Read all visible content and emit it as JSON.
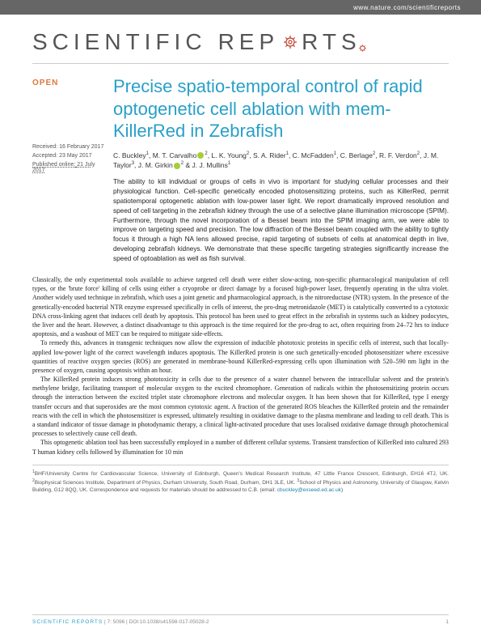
{
  "banner": {
    "url": "www.nature.com/scientificreports"
  },
  "journal": {
    "name_part1": "SCIENTIFIC",
    "name_part2": "REP",
    "name_part3": "RTS"
  },
  "openAccess": "OPEN",
  "meta": {
    "received_label": "Received:",
    "received_date": "16 February 2017",
    "accepted_label": "Accepted:",
    "accepted_date": "23 May 2017",
    "published_label": "Published online:",
    "published_date": "21 July 2017"
  },
  "article": {
    "title": "Precise spatio-temporal control of rapid optogenetic cell ablation with mem-KillerRed in Zebrafish",
    "authors_html": "C. Buckley<sup>1</sup>, M. T. Carvalho<orcid></orcid><sup>2</sup>, L. K. Young<sup>2</sup>, S. A. Rider<sup>1</sup>, C. McFadden<sup>1</sup>, C. Berlage<sup>2</sup>, R. F. Verdon<sup>2</sup>, J. M. Taylor<sup>3</sup>, J. M. Girkin<orcid></orcid><sup>2</sup> & J. J. Mullins<sup>1</sup>",
    "abstract": "The ability to kill individual or groups of cells in vivo is important for studying cellular processes and their physiological function. Cell-specific genetically encoded photosensitizing proteins, such as KillerRed, permit spatiotemporal optogenetic ablation with low-power laser light. We report dramatically improved resolution and speed of cell targeting in the zebrafish kidney through the use of a selective plane illumination microscope (SPIM). Furthermore, through the novel incorporation of a Bessel beam into the SPIM imaging arm, we were able to improve on targeting speed and precision. The low diffraction of the Bessel beam coupled with the ability to tightly focus it through a high NA lens allowed precise, rapid targeting of subsets of cells at anatomical depth in live, developing zebrafish kidneys. We demonstrate that these specific targeting strategies significantly increase the speed of optoablation as well as fish survival."
  },
  "body": {
    "p1": "Classically, the only experimental tools available to achieve targeted cell death were either slow-acting, non-specific pharmacological manipulation of cell types, or the 'brute force' killing of cells using either a cryoprobe or direct damage by a focused high-power laser, frequently operating in the ultra violet. Another widely used technique in zebrafish, which uses a joint genetic and pharmacological approach, is the nitroreductase (NTR) system. In the presence of the genetically-encoded bacterial NTR enzyme expressed specifically in cells of interest, the pro-drug metronidazole (MET) is catalytically converted to a cytotoxic DNA cross-linking agent that induces cell death by apoptosis. This protocol has been used to great effect in the zebrafish in systems such as kidney podocytes, the liver and the heart. However, a distinct disadvantage to this approach is the time required for the pro-drug to act, often requiring from 24–72 hrs to induce apoptosis, and a washout of MET can be required to mitigate side-effects.",
    "p2": "To remedy this, advances in transgenic techniques now allow the expression of inducible phototoxic proteins in specific cells of interest, such that locally-applied low-power light of the correct wavelength induces apoptosis. The KillerRed protein is one such genetically-encoded photosensitizer where excessive quantities of reactive oxygen species (ROS) are generated in membrane-bound KillerRed-expressing cells upon illumination with 520–590 nm light in the presence of oxygen, causing apoptosis within an hour.",
    "p3": "The KillerRed protein induces strong phototoxicity in cells due to the presence of a water channel between the intracellular solvent and the protein's methylene bridge, facilitating transport of molecular oxygen to the excited chromophore. Generation of radicals within the photosensitizing protein occurs through the interaction between the excited triplet state chromophore electrons and molecular oxygen. It has been shown that for KillerRed, type I energy transfer occurs and that superoxides are the most common cytotoxic agent. A fraction of the generated ROS bleaches the KillerRed protein and the remainder reacts with the cell in which the photosensitizer is expressed, ultimately resulting in oxidative damage to the plasma membrane and leading to cell death. This is a standard indicator of tissue damage in photodynamic therapy, a clinical light-activated procedure that uses localised oxidative damage through photochemical processes to selectively cause cell death.",
    "p4": "This optogenetic ablation tool has been successfully employed in a number of different cellular systems. Transient transfection of KillerRed into cultured 293 T human kidney cells followed by illumination for 10 min"
  },
  "affiliations": {
    "text_html": "<sup>1</sup>BHF/University Centre for Cardiovascular Science, University of Edinburgh, Queen's Medical Research Institute, 47 Little France Crescent, Edinburgh, EH16 4TJ, UK. <sup>2</sup>Biophysical Sciences Institute, Department of Physics, Durham University, South Road, Durham, DH1 3LE, UK. <sup>3</sup>School of Physics and Astronomy, University of Glasgow, Kelvin Building, G12 8QQ, UK. Correspondence and requests for materials should be addressed to C.B. (email: ",
    "email": "cbuckley@exseed.ed.ac.uk",
    "close": ")"
  },
  "footer": {
    "journal_short": "SCIENTIFIC REPORTS",
    "citation": " | 7: 5096 | DOI:10.1038/s41598-017-05028-2",
    "page": "1"
  },
  "colors": {
    "banner_bg": "#666666",
    "accent": "#28a0c8",
    "open": "#d97a3a",
    "orcid": "#a6ce39",
    "body_text": "#222222",
    "meta_text": "#555555",
    "rule": "#cccccc"
  },
  "typography": {
    "title_fontsize": 22,
    "journal_fontsize": 28,
    "abstract_fontsize": 8.2,
    "body_fontsize": 8,
    "author_fontsize": 8.5,
    "meta_fontsize": 7,
    "affil_fontsize": 6.5,
    "footer_fontsize": 6.5
  }
}
